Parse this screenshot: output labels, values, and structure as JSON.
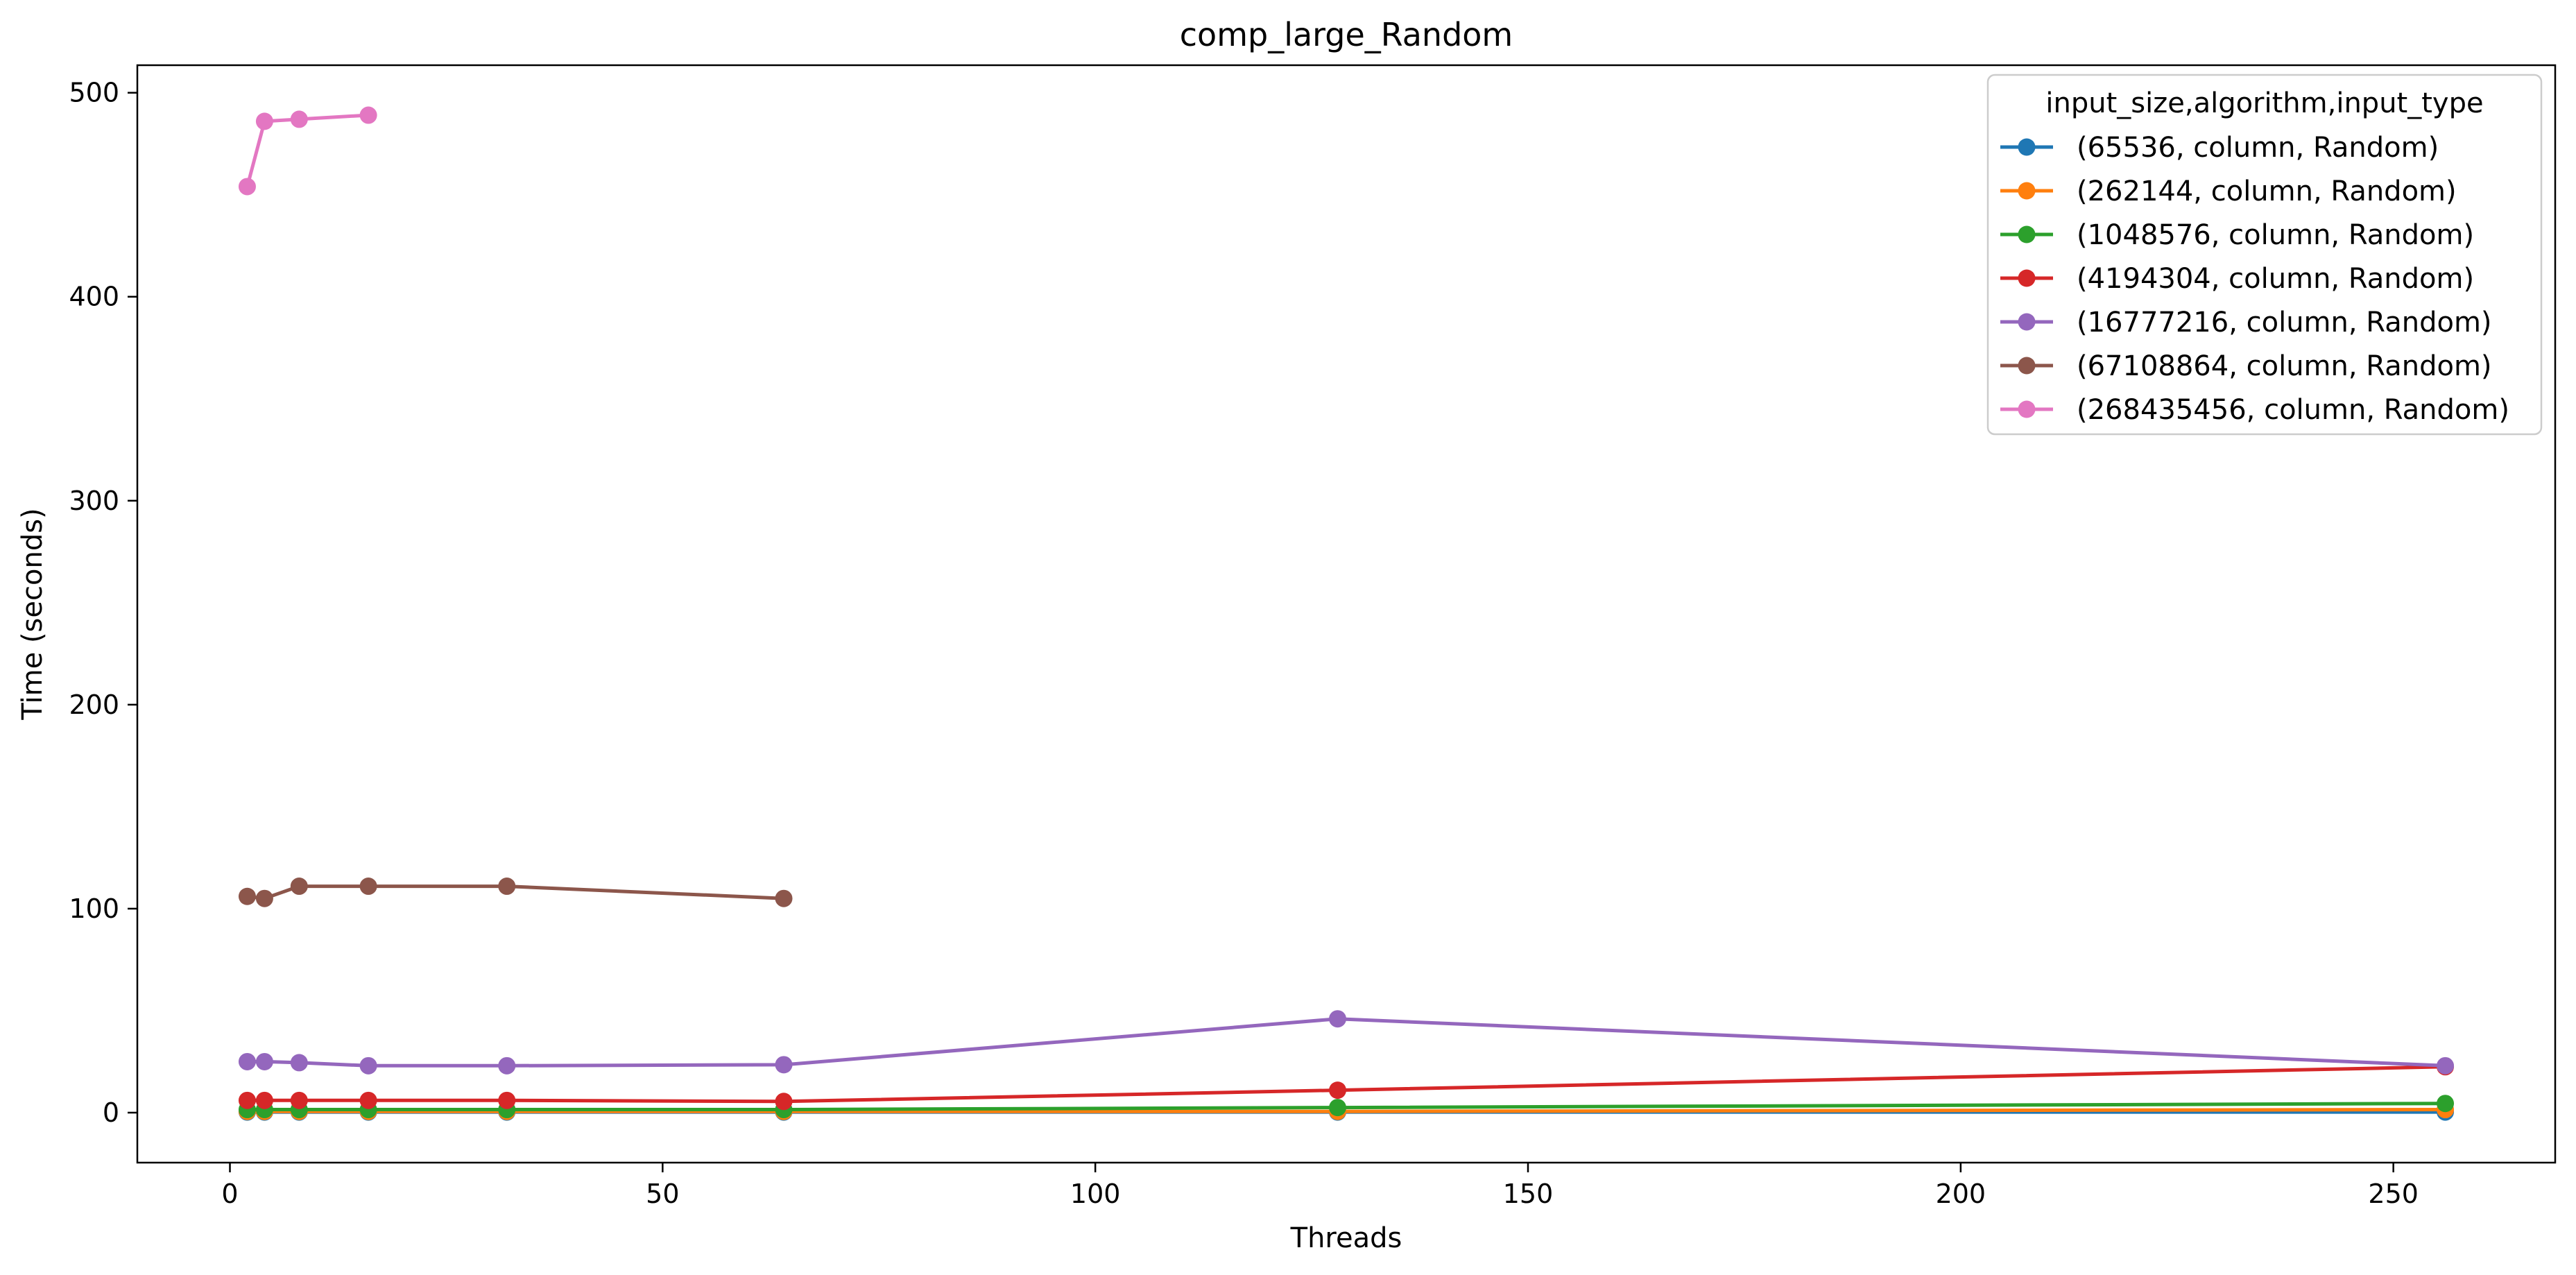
{
  "chart_data": {
    "type": "line",
    "title": "comp_large_Random",
    "xlabel": "Threads",
    "ylabel": "Time (seconds)",
    "xlim": [
      -10.7,
      268.7
    ],
    "ylim": [
      -24.5,
      513.5
    ],
    "xticks": [
      0,
      50,
      100,
      150,
      200,
      250
    ],
    "yticks": [
      0,
      100,
      200,
      300,
      400,
      500
    ],
    "grid": false,
    "legend": {
      "title": "input_size,algorithm,input_type",
      "placement": "top-right"
    },
    "series": [
      {
        "name": "(65536, column, Random)",
        "color": "#1f77b4",
        "x": [
          2,
          4,
          8,
          16,
          32,
          64,
          128,
          256
        ],
        "y": [
          0.3,
          0.3,
          0.3,
          0.3,
          0.3,
          0.3,
          0.3,
          0.3
        ]
      },
      {
        "name": "(262144, column, Random)",
        "color": "#ff7f0e",
        "x": [
          2,
          4,
          8,
          16,
          32,
          64,
          128,
          256
        ],
        "y": [
          0.6,
          0.6,
          0.6,
          0.6,
          0.6,
          0.6,
          0.6,
          1.5
        ]
      },
      {
        "name": "(1048576, column, Random)",
        "color": "#2ca02c",
        "x": [
          2,
          4,
          8,
          16,
          32,
          64,
          128,
          256
        ],
        "y": [
          1.5,
          1.5,
          1.5,
          1.5,
          1.5,
          1.5,
          2.5,
          4.5
        ]
      },
      {
        "name": "(4194304, column, Random)",
        "color": "#d62728",
        "x": [
          2,
          4,
          8,
          16,
          32,
          64,
          128,
          256
        ],
        "y": [
          6,
          6,
          6,
          6,
          6,
          5.5,
          11,
          22.5
        ]
      },
      {
        "name": "(16777216, column, Random)",
        "color": "#9467bd",
        "x": [
          2,
          4,
          8,
          16,
          32,
          64,
          128,
          256
        ],
        "y": [
          25,
          25,
          24.5,
          23,
          23,
          23.5,
          46,
          23
        ]
      },
      {
        "name": "(67108864, column, Random)",
        "color": "#8c564b",
        "x": [
          2,
          4,
          8,
          16,
          32,
          64
        ],
        "y": [
          106,
          105,
          111,
          111,
          111,
          105
        ]
      },
      {
        "name": "(268435456, column, Random)",
        "color": "#e377c2",
        "x": [
          2,
          4,
          8,
          16
        ],
        "y": [
          454,
          486,
          487,
          489
        ]
      }
    ]
  }
}
